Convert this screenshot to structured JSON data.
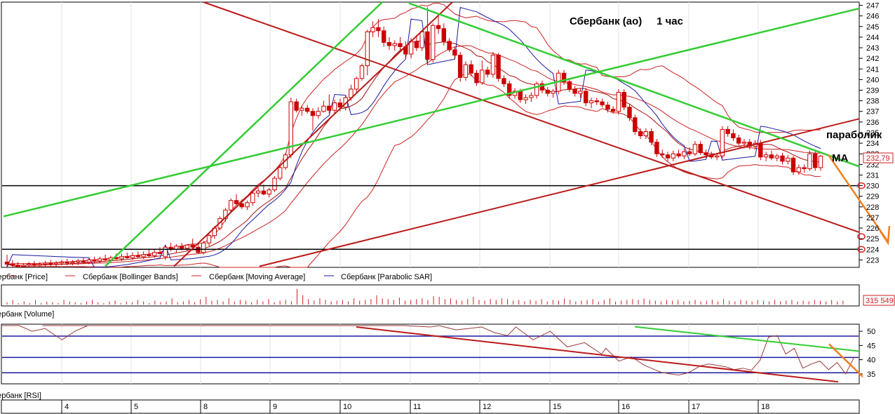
{
  "chart_data": [
    {
      "type": "candlestick",
      "title": "Сбербанк (ао)     1 час",
      "ylim": [
        222.3,
        247.3
      ],
      "y_ticks": [
        223,
        224,
        225,
        226,
        227,
        228,
        229,
        230,
        231,
        232,
        233,
        234,
        235,
        236,
        237,
        238,
        239,
        240,
        241,
        242,
        243,
        244,
        245,
        246,
        247
      ],
      "last_price_label": "232,79",
      "legend": [
        "Сбербанк [Price]",
        "Сбербанк [Bollinger Bands]",
        "Сбербанк [Moving Average]",
        "Сбербанк [Parabolic SAR]"
      ],
      "annotations": [
        "параболик",
        "MA"
      ],
      "horizontal_levels": [
        230,
        224
      ],
      "circled_levels": [
        230,
        225.2,
        224
      ],
      "colors": {
        "candle": "#cc0000",
        "bands": "#cc2222",
        "ma": "#aa1111",
        "sar": "#1a1aa0",
        "support_trend": "#bb1a1a",
        "green_trend": "#33cc33",
        "projection": "#f08020"
      },
      "candles": [
        [
          222.8,
          223.5,
          222.3,
          222.6
        ],
        [
          222.6,
          223.0,
          222.3,
          222.5
        ],
        [
          222.5,
          222.8,
          222.3,
          222.4
        ],
        [
          222.4,
          222.7,
          222.3,
          222.5
        ],
        [
          222.5,
          222.8,
          222.3,
          222.6
        ],
        [
          222.6,
          222.9,
          222.3,
          222.5
        ],
        [
          222.5,
          222.8,
          222.3,
          222.6
        ],
        [
          222.6,
          222.9,
          222.4,
          222.7
        ],
        [
          222.7,
          223.0,
          222.4,
          222.6
        ],
        [
          222.6,
          222.9,
          222.4,
          222.7
        ],
        [
          222.7,
          223.0,
          222.5,
          222.8
        ],
        [
          222.8,
          223.1,
          222.5,
          222.7
        ],
        [
          222.7,
          223.0,
          222.5,
          222.8
        ],
        [
          222.8,
          223.1,
          222.5,
          222.9
        ],
        [
          222.9,
          223.2,
          222.6,
          222.8
        ],
        [
          222.8,
          223.2,
          222.6,
          223.0
        ],
        [
          223.0,
          223.3,
          222.7,
          222.9
        ],
        [
          222.9,
          223.3,
          222.7,
          223.1
        ],
        [
          223.1,
          223.5,
          222.9,
          223.0
        ],
        [
          223.0,
          223.4,
          222.8,
          223.2
        ],
        [
          223.2,
          223.6,
          223.0,
          223.1
        ],
        [
          223.1,
          223.6,
          222.9,
          223.3
        ],
        [
          223.3,
          223.7,
          223.1,
          223.2
        ],
        [
          223.2,
          223.7,
          223.0,
          223.4
        ],
        [
          223.4,
          223.8,
          223.2,
          223.3
        ],
        [
          223.3,
          223.8,
          223.1,
          223.5
        ],
        [
          223.5,
          224.0,
          223.3,
          223.4
        ],
        [
          223.4,
          224.0,
          223.2,
          223.7
        ],
        [
          223.7,
          224.2,
          223.5,
          223.6
        ],
        [
          223.3,
          224.4,
          223.0,
          224.2
        ],
        [
          224.2,
          224.6,
          223.8,
          224.0
        ],
        [
          224.0,
          224.5,
          223.7,
          224.3
        ],
        [
          224.3,
          224.6,
          223.9,
          224.1
        ],
        [
          224.1,
          224.5,
          223.8,
          224.4
        ],
        [
          224.4,
          225.0,
          224.0,
          224.2
        ],
        [
          224.2,
          224.6,
          223.6,
          223.7
        ],
        [
          223.7,
          224.8,
          223.5,
          224.6
        ],
        [
          224.6,
          225.5,
          224.3,
          225.3
        ],
        [
          225.3,
          226.2,
          225.0,
          226.0
        ],
        [
          226.0,
          227.1,
          225.8,
          226.9
        ],
        [
          226.9,
          227.9,
          226.6,
          227.7
        ],
        [
          227.7,
          228.8,
          227.4,
          228.6
        ],
        [
          228.6,
          229.2,
          228.2,
          228.3
        ],
        [
          228.3,
          228.7,
          227.8,
          228.0
        ],
        [
          228.0,
          228.6,
          227.7,
          228.4
        ],
        [
          228.4,
          229.5,
          228.1,
          229.3
        ],
        [
          229.3,
          229.8,
          228.9,
          229.5
        ],
        [
          229.5,
          230.1,
          229.1,
          229.2
        ],
        [
          229.2,
          229.8,
          228.9,
          229.6
        ],
        [
          229.6,
          230.9,
          229.4,
          230.7
        ],
        [
          230.7,
          231.9,
          230.5,
          231.7
        ],
        [
          231.7,
          233.1,
          231.5,
          232.9
        ],
        [
          232.9,
          238.3,
          232.6,
          237.9
        ],
        [
          237.9,
          238.2,
          236.9,
          237.1
        ],
        [
          237.1,
          237.5,
          236.6,
          237.3
        ],
        [
          237.3,
          237.6,
          236.8,
          237.0
        ],
        [
          237.0,
          237.3,
          235.2,
          236.6
        ],
        [
          236.6,
          237.4,
          236.3,
          237.0
        ],
        [
          237.0,
          238.0,
          236.9,
          237.5
        ],
        [
          237.5,
          238.6,
          236.8,
          237.1
        ],
        [
          237.1,
          238.1,
          236.7,
          237.8
        ],
        [
          237.8,
          238.2,
          237.0,
          237.4
        ],
        [
          237.4,
          238.5,
          237.1,
          238.3
        ],
        [
          238.3,
          239.5,
          238.0,
          239.1
        ],
        [
          239.1,
          240.3,
          238.7,
          240.1
        ],
        [
          240.1,
          241.5,
          239.9,
          241.3
        ],
        [
          241.3,
          244.7,
          240.4,
          244.5
        ],
        [
          244.5,
          245.5,
          244.0,
          244.9
        ],
        [
          244.9,
          245.7,
          244.0,
          244.6
        ],
        [
          244.6,
          245.0,
          243.1,
          243.5
        ],
        [
          243.5,
          244.0,
          242.8,
          243.2
        ],
        [
          243.2,
          243.7,
          242.7,
          243.4
        ],
        [
          243.4,
          244.0,
          242.8,
          243.1
        ],
        [
          243.1,
          243.6,
          242.0,
          242.4
        ],
        [
          242.4,
          243.9,
          242.0,
          243.6
        ],
        [
          243.6,
          244.2,
          242.7,
          243.0
        ],
        [
          243.0,
          244.7,
          242.7,
          244.5
        ],
        [
          244.5,
          246.8,
          241.4,
          241.9
        ],
        [
          241.9,
          245.3,
          241.6,
          245.1
        ],
        [
          245.1,
          246.0,
          244.3,
          244.8
        ],
        [
          244.8,
          245.3,
          243.2,
          243.6
        ],
        [
          243.6,
          243.9,
          242.6,
          242.8
        ],
        [
          242.8,
          243.1,
          242.0,
          242.3
        ],
        [
          242.3,
          242.6,
          239.8,
          240.2
        ],
        [
          240.2,
          241.7,
          239.9,
          241.4
        ],
        [
          241.4,
          241.8,
          240.3,
          240.6
        ],
        [
          240.6,
          240.9,
          239.4,
          239.7
        ],
        [
          239.7,
          241.8,
          239.5,
          240.9
        ],
        [
          240.9,
          241.2,
          240.2,
          240.5
        ],
        [
          240.5,
          242.6,
          240.2,
          242.3
        ],
        [
          242.3,
          242.5,
          239.8,
          240.1
        ],
        [
          240.1,
          240.4,
          239.3,
          239.6
        ],
        [
          239.6,
          239.9,
          238.2,
          238.5
        ],
        [
          238.5,
          239.2,
          238.2,
          238.9
        ],
        [
          238.9,
          239.1,
          237.8,
          238.1
        ],
        [
          238.1,
          238.6,
          237.7,
          238.3
        ],
        [
          238.3,
          238.8,
          237.9,
          238.5
        ],
        [
          238.5,
          239.8,
          238.2,
          239.6
        ],
        [
          239.6,
          239.9,
          238.7,
          239.0
        ],
        [
          239.0,
          239.3,
          238.4,
          238.7
        ],
        [
          238.7,
          239.1,
          238.3,
          238.9
        ],
        [
          238.9,
          240.9,
          238.6,
          240.6
        ],
        [
          240.6,
          240.9,
          239.5,
          239.8
        ],
        [
          239.8,
          240.1,
          238.8,
          239.1
        ],
        [
          239.1,
          239.4,
          238.4,
          238.7
        ],
        [
          238.7,
          239.2,
          238.3,
          238.9
        ],
        [
          238.9,
          239.2,
          237.5,
          237.8
        ],
        [
          237.8,
          238.3,
          237.3,
          238.0
        ],
        [
          238.0,
          238.3,
          237.6,
          237.9
        ],
        [
          237.9,
          238.2,
          237.4,
          237.6
        ],
        [
          237.6,
          237.9,
          236.9,
          237.2
        ],
        [
          237.2,
          237.5,
          236.8,
          237.0
        ],
        [
          237.0,
          239.1,
          236.7,
          238.8
        ],
        [
          238.8,
          239.1,
          237.1,
          237.4
        ],
        [
          237.4,
          237.7,
          236.1,
          236.4
        ],
        [
          236.4,
          236.7,
          234.8,
          235.1
        ],
        [
          235.1,
          235.4,
          234.4,
          234.7
        ],
        [
          234.7,
          235.4,
          234.4,
          235.1
        ],
        [
          235.1,
          235.4,
          233.8,
          234.1
        ],
        [
          234.1,
          234.4,
          232.7,
          233.0
        ],
        [
          233.0,
          233.4,
          232.6,
          232.9
        ],
        [
          232.9,
          233.2,
          232.3,
          232.6
        ],
        [
          232.6,
          233.3,
          232.3,
          233.0
        ],
        [
          233.0,
          233.4,
          232.6,
          232.8
        ],
        [
          232.8,
          233.5,
          232.5,
          233.2
        ],
        [
          233.2,
          233.6,
          232.8,
          233.0
        ],
        [
          233.0,
          234.2,
          232.8,
          233.9
        ],
        [
          233.9,
          234.2,
          232.9,
          233.1
        ],
        [
          233.1,
          233.4,
          232.6,
          232.9
        ],
        [
          232.9,
          233.2,
          232.5,
          232.7
        ],
        [
          232.7,
          233.1,
          232.4,
          232.8
        ],
        [
          232.8,
          235.6,
          232.6,
          235.3
        ],
        [
          235.3,
          235.6,
          234.6,
          234.9
        ],
        [
          234.9,
          235.3,
          234.2,
          234.5
        ],
        [
          234.5,
          234.8,
          233.7,
          234.0
        ],
        [
          234.0,
          234.4,
          233.5,
          234.1
        ],
        [
          234.1,
          234.4,
          233.4,
          233.7
        ],
        [
          233.7,
          234.3,
          233.4,
          234.0
        ],
        [
          234.0,
          234.3,
          232.4,
          232.7
        ],
        [
          232.7,
          233.2,
          232.3,
          232.9
        ],
        [
          232.9,
          233.3,
          232.4,
          232.6
        ],
        [
          232.6,
          233.0,
          232.3,
          232.8
        ],
        [
          232.8,
          233.1,
          232.0,
          232.3
        ],
        [
          232.3,
          232.9,
          232.0,
          232.6
        ],
        [
          232.6,
          232.8,
          231.0,
          231.3
        ],
        [
          231.3,
          232.0,
          231.0,
          231.7
        ],
        [
          231.7,
          232.0,
          231.2,
          231.6
        ],
        [
          231.6,
          233.3,
          231.4,
          233.0
        ],
        [
          233.0,
          233.3,
          231.4,
          231.7
        ],
        [
          231.7,
          232.9,
          231.4,
          232.79
        ]
      ]
    },
    {
      "type": "bar",
      "legend": [
        "Сбербанк [Volume]"
      ],
      "last_value_label": "315 549",
      "heights": [
        0.15,
        0.3,
        0.1,
        0.2,
        0.1,
        0.3,
        0.1,
        0.2,
        0.15,
        0.1,
        0.3,
        0.2,
        0.15,
        0.1,
        0.2,
        0.3,
        0.15,
        0.1,
        0.2,
        0.25,
        0.1,
        0.2,
        0.15,
        0.3,
        0.2,
        0.1,
        0.25,
        0.15,
        0.2,
        0.4,
        0.15,
        0.2,
        0.3,
        0.15,
        0.35,
        0.5,
        0.25,
        0.3,
        0.2,
        0.4,
        0.2,
        0.3,
        0.25,
        0.15,
        0.3,
        0.2,
        0.35,
        0.15,
        0.25,
        0.3,
        0.2,
        1.0,
        0.6,
        0.35,
        0.25,
        0.4,
        0.3,
        0.2,
        0.25,
        0.3,
        0.2,
        0.4,
        0.25,
        0.3,
        0.35,
        0.6,
        0.4,
        0.35,
        0.3,
        0.45,
        0.25,
        0.3,
        0.35,
        0.4,
        0.3,
        0.55,
        0.5,
        0.35,
        0.4,
        0.3,
        0.25,
        0.35,
        0.5,
        0.3,
        0.25,
        0.35,
        0.3,
        0.4,
        0.35,
        0.25,
        0.3,
        0.2,
        0.3,
        0.25,
        0.35,
        0.2,
        0.3,
        0.25,
        0.4,
        0.3,
        0.2,
        0.25,
        0.3,
        0.35,
        0.2,
        0.3,
        0.4,
        0.2,
        0.25,
        0.3,
        0.35,
        0.3,
        0.4,
        0.3,
        0.25,
        0.2,
        0.3,
        0.25,
        0.3,
        0.2,
        0.25,
        0.3,
        0.2,
        0.25,
        0.3,
        0.2,
        0.35,
        0.25,
        0.2,
        0.3,
        0.25,
        0.2,
        0.3,
        0.25,
        0.2,
        0.3,
        0.2,
        0.25,
        0.3,
        0.2,
        0.25,
        0.2,
        0.3,
        0.25,
        0.2,
        0.3,
        0.2,
        0.25
      ]
    },
    {
      "type": "line",
      "legend": [
        "Сбербанк [RSI]"
      ],
      "ylim": [
        31.5,
        52.5
      ],
      "y_ticks": [
        35,
        40,
        45,
        50
      ],
      "levels": [
        48.3,
        40.8,
        35.4
      ],
      "series": [
        {
          "x": [
            0.047,
            0.055,
            0.07,
            0.09,
            0.12,
            0.15,
            0.2,
            0.26,
            0.3,
            0.34,
            0.38,
            0.41,
            0.44,
            0.47,
            0.5,
            0.51,
            0.53,
            0.545,
            0.56,
            0.575,
            0.59,
            0.6,
            0.62,
            0.64,
            0.66,
            0.68,
            0.7,
            0.705,
            0.72,
            0.735,
            0.75,
            0.77,
            0.78,
            0.79,
            0.8,
            0.805,
            0.815,
            0.825,
            0.835,
            0.845,
            0.855,
            0.865,
            0.875,
            0.885,
            0.895,
            0.905,
            0.915,
            0.925,
            0.935,
            0.945,
            0.955,
            0.965,
            0.975,
            0.985,
            0.995
          ],
          "y": [
            52,
            52,
            52,
            52,
            52,
            52,
            52,
            52,
            52,
            52,
            52,
            52,
            52,
            52,
            51.5,
            52,
            50.5,
            51,
            51.5,
            49.5,
            48.5,
            51.5,
            47,
            50,
            44.5,
            46,
            42,
            44,
            39.5,
            41,
            38,
            35.5,
            35,
            34.6,
            35.3,
            36,
            37.8,
            38.5,
            38,
            37.5,
            36.5,
            37,
            36.3,
            39.8,
            48,
            48.5,
            42,
            44,
            37,
            38.5,
            39.5,
            36.5,
            39,
            35,
            41
          ]
        },
        {
          "x": [
            0.0,
            0.02,
            0.035,
            0.05,
            0.07,
            0.085,
            0.1
          ],
          "y": [
            52,
            52,
            50,
            51,
            47,
            50,
            52
          ]
        }
      ]
    }
  ],
  "x_axis": {
    "labels": [
      "4",
      "5",
      "8",
      "9",
      "10",
      "11",
      "12",
      "15",
      "16",
      "17",
      "18"
    ]
  }
}
